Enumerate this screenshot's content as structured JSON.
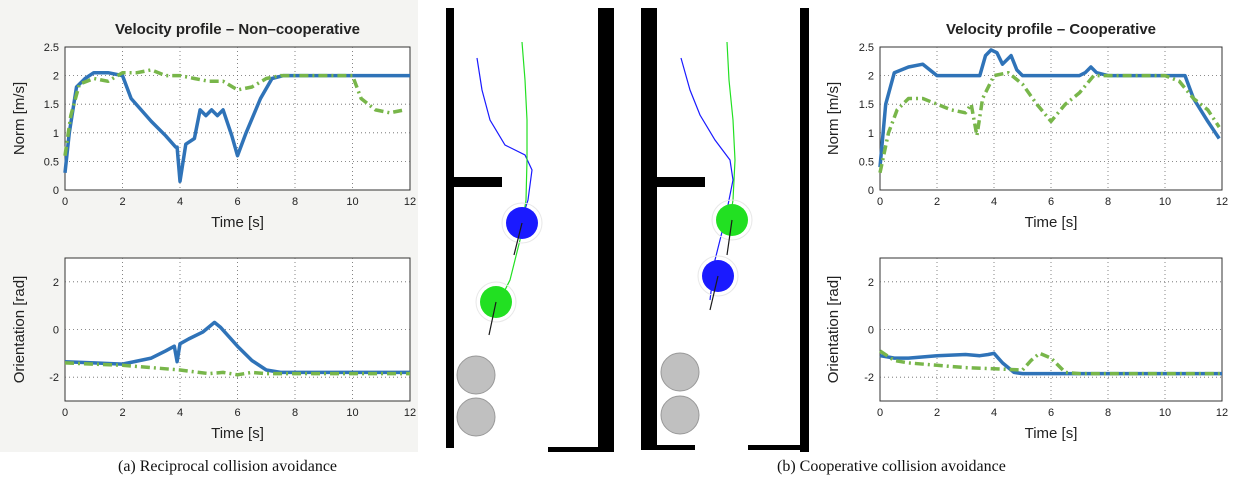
{
  "captions": {
    "a": "(a) Reciprocal collision avoidance",
    "b": "(b) Cooperative collision avoidance"
  },
  "colors": {
    "series_solid": "#2f73b8",
    "series_dashed": "#78b64a",
    "robot_blue": "#1a1aff",
    "robot_green": "#22e022",
    "obstacle": "#c0c0c0",
    "wall": "#000000",
    "panel_bg_left": "#f4f4f2"
  },
  "chart_data": [
    {
      "id": "left-velocity",
      "type": "line",
      "title": "Velocity profile – Non–cooperative",
      "xlabel": "Time [s]",
      "ylabel": "Norm [m/s]",
      "xlim": [
        0,
        12
      ],
      "ylim": [
        0,
        2.5
      ],
      "xticks": [
        "0",
        "2",
        "4",
        "6",
        "8",
        "10",
        "12"
      ],
      "yticks": [
        "0",
        "0.5",
        "1",
        "1.5",
        "2",
        "2.5"
      ],
      "grid": true,
      "series": [
        {
          "style": "solid",
          "x": [
            0,
            0.15,
            0.4,
            0.7,
            1,
            1.5,
            2,
            2.3,
            3,
            3.5,
            3.85,
            3.9,
            4,
            4.2,
            4.5,
            4.7,
            4.9,
            5.1,
            5.3,
            5.5,
            5.8,
            6,
            6.3,
            6.8,
            7.2,
            7.6,
            8,
            10,
            12
          ],
          "y": [
            0.3,
            1.0,
            1.8,
            1.95,
            2.05,
            2.05,
            2.0,
            1.6,
            1.2,
            0.95,
            0.75,
            0.75,
            0.15,
            0.8,
            0.9,
            1.4,
            1.3,
            1.4,
            1.3,
            1.4,
            0.95,
            0.6,
            1.0,
            1.6,
            1.95,
            2.0,
            2.0,
            2.0,
            2.0
          ]
        },
        {
          "style": "dashdot",
          "x": [
            0,
            0.2,
            0.5,
            1,
            1.5,
            2,
            2.5,
            3,
            3.5,
            4,
            4.5,
            5,
            5.5,
            6,
            6.5,
            7,
            7.5,
            8,
            9,
            10,
            10.3,
            10.8,
            11.3,
            11.8
          ],
          "y": [
            0.6,
            1.3,
            1.85,
            1.95,
            1.9,
            2.05,
            2.05,
            2.1,
            2.0,
            2.0,
            1.95,
            1.9,
            1.9,
            1.75,
            1.8,
            1.95,
            2.0,
            2.0,
            2.0,
            2.0,
            1.6,
            1.4,
            1.35,
            1.4
          ]
        }
      ]
    },
    {
      "id": "left-orientation",
      "type": "line",
      "title": "",
      "xlabel": "Time [s]",
      "ylabel": "Orientation [rad]",
      "xlim": [
        0,
        12
      ],
      "ylim": [
        -3,
        3
      ],
      "xticks": [
        "0",
        "2",
        "4",
        "6",
        "8",
        "10",
        "12"
      ],
      "yticks": [
        "-2",
        "0",
        "2"
      ],
      "grid": true,
      "series": [
        {
          "style": "solid",
          "x": [
            0,
            1,
            2,
            3,
            3.5,
            3.8,
            3.9,
            4,
            4.3,
            4.8,
            5.2,
            5.4,
            6,
            6.5,
            7,
            7.5,
            8,
            10,
            12
          ],
          "y": [
            -1.35,
            -1.4,
            -1.45,
            -1.2,
            -0.9,
            -0.7,
            -1.35,
            -0.6,
            -0.4,
            -0.1,
            0.3,
            0.1,
            -0.7,
            -1.3,
            -1.7,
            -1.8,
            -1.8,
            -1.8,
            -1.8
          ]
        },
        {
          "style": "dashdot",
          "x": [
            0,
            1,
            2,
            3,
            4,
            5,
            5.5,
            6,
            6.5,
            7,
            8,
            10,
            12
          ],
          "y": [
            -1.4,
            -1.45,
            -1.5,
            -1.6,
            -1.7,
            -1.85,
            -1.8,
            -1.9,
            -1.8,
            -1.85,
            -1.85,
            -1.85,
            -1.85
          ]
        }
      ]
    },
    {
      "id": "right-velocity",
      "type": "line",
      "title": "Velocity profile – Cooperative",
      "xlabel": "Time [s]",
      "ylabel": "Norm [m/s]",
      "xlim": [
        0,
        12
      ],
      "ylim": [
        0,
        2.5
      ],
      "xticks": [
        "0",
        "2",
        "4",
        "6",
        "8",
        "10",
        "12"
      ],
      "yticks": [
        "0",
        "0.5",
        "1",
        "1.5",
        "2",
        "2.5"
      ],
      "grid": true,
      "series": [
        {
          "style": "solid",
          "x": [
            0,
            0.2,
            0.5,
            1,
            1.5,
            2,
            2.5,
            3,
            3.5,
            3.7,
            3.9,
            4.1,
            4.3,
            4.6,
            4.8,
            5,
            6,
            7,
            7.2,
            7.4,
            7.6,
            8,
            9,
            10,
            10.7,
            11,
            11.5,
            11.9
          ],
          "y": [
            0.4,
            1.5,
            2.05,
            2.15,
            2.2,
            2.0,
            2.0,
            2.0,
            2.0,
            2.35,
            2.45,
            2.4,
            2.2,
            2.35,
            2.1,
            2.0,
            2.0,
            2.0,
            2.05,
            2.15,
            2.05,
            2.0,
            2.0,
            2.0,
            2.0,
            1.6,
            1.2,
            0.9
          ]
        },
        {
          "style": "dashdot",
          "x": [
            0,
            0.3,
            0.6,
            1,
            1.5,
            2,
            2.5,
            3,
            3.2,
            3.4,
            3.6,
            4,
            4.5,
            5,
            5.5,
            6,
            6.5,
            7,
            7.5,
            8,
            9,
            10,
            10.5,
            11,
            11.5,
            11.9
          ],
          "y": [
            0.3,
            1.0,
            1.4,
            1.6,
            1.6,
            1.5,
            1.4,
            1.35,
            1.5,
            0.95,
            1.6,
            2.0,
            2.05,
            1.85,
            1.5,
            1.2,
            1.5,
            1.7,
            2.0,
            2.0,
            2.0,
            2.0,
            1.9,
            1.6,
            1.4,
            1.1
          ]
        }
      ]
    },
    {
      "id": "right-orientation",
      "type": "line",
      "title": "",
      "xlabel": "Time [s]",
      "ylabel": "Orientation [rad]",
      "xlim": [
        0,
        12
      ],
      "ylim": [
        -3,
        3
      ],
      "xticks": [
        "0",
        "2",
        "4",
        "6",
        "8",
        "10",
        "12"
      ],
      "yticks": [
        "-2",
        "0",
        "2"
      ],
      "grid": true,
      "series": [
        {
          "style": "solid",
          "x": [
            0,
            0.5,
            1,
            2,
            3,
            3.5,
            3.8,
            4,
            4.3,
            4.7,
            5,
            6,
            8,
            10,
            12
          ],
          "y": [
            -1.1,
            -1.2,
            -1.2,
            -1.1,
            -1.05,
            -1.1,
            -1.05,
            -1.0,
            -1.4,
            -1.8,
            -1.85,
            -1.85,
            -1.85,
            -1.85,
            -1.85
          ]
        },
        {
          "style": "dashdot",
          "x": [
            0,
            0.5,
            1,
            2,
            3,
            4,
            5,
            5.3,
            5.6,
            6,
            6.5,
            7,
            8,
            10,
            12
          ],
          "y": [
            -0.9,
            -1.3,
            -1.4,
            -1.5,
            -1.6,
            -1.65,
            -1.7,
            -1.3,
            -1.0,
            -1.2,
            -1.8,
            -1.85,
            -1.85,
            -1.85,
            -1.85
          ]
        }
      ]
    }
  ],
  "scenes": [
    {
      "id": "scene-a",
      "trajectories": [
        {
          "color": "#1a1aff",
          "points": [
            [
              477,
              58
            ],
            [
              482,
              90
            ],
            [
              490,
              120
            ],
            [
              505,
              145
            ],
            [
              525,
              155
            ],
            [
              532,
              170
            ],
            [
              528,
              200
            ],
            [
              520,
              225
            ]
          ]
        },
        {
          "color": "#22e022",
          "points": [
            [
              522,
              42
            ],
            [
              525,
              80
            ],
            [
              527,
              120
            ],
            [
              527,
              160
            ],
            [
              526,
              200
            ],
            [
              520,
              240
            ],
            [
              510,
              280
            ],
            [
              500,
              300
            ]
          ]
        }
      ],
      "robots": [
        {
          "color": "#1a1aff",
          "cx": 522,
          "cy": 223,
          "r": 16,
          "heading": [
            514,
            255
          ]
        },
        {
          "color": "#22e022",
          "cx": 496,
          "cy": 302,
          "r": 16,
          "heading": [
            489,
            335
          ]
        }
      ],
      "obstacles": [
        [
          476,
          375,
          19
        ],
        [
          476,
          417,
          19
        ]
      ]
    },
    {
      "id": "scene-b",
      "trajectories": [
        {
          "color": "#1a1aff",
          "points": [
            [
              681,
              58
            ],
            [
              690,
              90
            ],
            [
              700,
              115
            ],
            [
              715,
              140
            ],
            [
              730,
              160
            ],
            [
              733,
              180
            ],
            [
              725,
              220
            ],
            [
              715,
              260
            ],
            [
              710,
              300
            ]
          ]
        },
        {
          "color": "#22e022",
          "points": [
            [
              727,
              42
            ],
            [
              729,
              80
            ],
            [
              733,
              120
            ],
            [
              735,
              160
            ],
            [
              733,
              200
            ],
            [
              730,
              220
            ]
          ]
        }
      ],
      "robots": [
        {
          "color": "#22e022",
          "cx": 732,
          "cy": 220,
          "r": 16,
          "heading": [
            727,
            255
          ]
        },
        {
          "color": "#1a1aff",
          "cx": 718,
          "cy": 276,
          "r": 16,
          "heading": [
            710,
            310
          ]
        }
      ],
      "obstacles": [
        [
          680,
          372,
          19
        ],
        [
          680,
          415,
          19
        ]
      ]
    }
  ]
}
